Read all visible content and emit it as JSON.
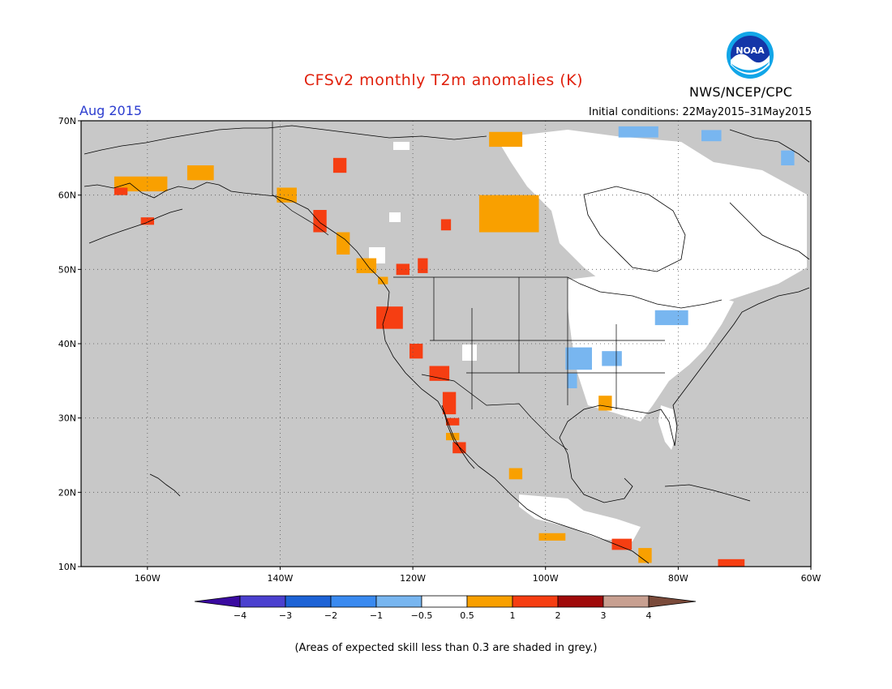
{
  "header": {
    "title": "CFSv2 monthly T2m anomalies (K)",
    "month": "Aug 2015",
    "initial_conditions": "Initial conditions: 22May2015–31May2015",
    "agency": "NWS/NCEP/CPC",
    "logo_text": "NOAA"
  },
  "map": {
    "lon_range": [
      -170,
      -60
    ],
    "lat_range": [
      10,
      70
    ],
    "lat_ticks": [
      {
        "value": 70,
        "label": "70N"
      },
      {
        "value": 60,
        "label": "60N"
      },
      {
        "value": 50,
        "label": "50N"
      },
      {
        "value": 40,
        "label": "40N"
      },
      {
        "value": 30,
        "label": "30N"
      },
      {
        "value": 20,
        "label": "20N"
      },
      {
        "value": 10,
        "label": "10N"
      }
    ],
    "lon_ticks": [
      {
        "value": -160,
        "label": "160W"
      },
      {
        "value": -140,
        "label": "140W"
      },
      {
        "value": -120,
        "label": "120W"
      },
      {
        "value": -100,
        "label": "100W"
      },
      {
        "value": -80,
        "label": "80W"
      },
      {
        "value": -60,
        "label": "60W"
      }
    ],
    "colors": {
      "low_skill_grey": "#c8c8c8",
      "land_line": "#000000",
      "neutral": "#ffffff",
      "orange": "#f9a000",
      "red_orange": "#f63e12",
      "light_blue": "#78b6f0",
      "blue": "#4a98ef"
    }
  },
  "colorbar": {
    "colors": [
      "#3a0aa0",
      "#4b40cf",
      "#1d63d6",
      "#3a8af0",
      "#78b6f0",
      "#ffffff",
      "#f9a000",
      "#f63e12",
      "#a00a0a",
      "#c8a091",
      "#7a4a3a"
    ],
    "labels": [
      "−4",
      "−3",
      "−2",
      "−1",
      "−0.5",
      "0.5",
      "1",
      "2",
      "3",
      "4"
    ]
  },
  "footnote": "(Areas of expected skill less than 0.3 are shaded in grey.)",
  "chart_data": {
    "type": "heatmap",
    "title": "CFSv2 monthly T2m anomalies (K)",
    "units": "K",
    "bins": [
      -4,
      -3,
      -2,
      -1,
      -0.5,
      0.5,
      1,
      2,
      3,
      4
    ],
    "cells": [
      {
        "lon": -161,
        "lat": 61.5,
        "w": 8,
        "h": 2,
        "cat": "orange"
      },
      {
        "lon": -152,
        "lat": 63,
        "w": 4,
        "h": 2,
        "cat": "orange"
      },
      {
        "lon": -160,
        "lat": 56.5,
        "w": 2,
        "h": 1,
        "cat": "red_orange"
      },
      {
        "lon": -164,
        "lat": 60.5,
        "w": 2,
        "h": 1,
        "cat": "red_orange"
      },
      {
        "lon": -139,
        "lat": 60,
        "w": 3,
        "h": 2,
        "cat": "orange"
      },
      {
        "lon": -134,
        "lat": 56.5,
        "w": 2,
        "h": 3,
        "cat": "red_orange"
      },
      {
        "lon": -130.5,
        "lat": 53.5,
        "w": 2,
        "h": 3,
        "cat": "orange"
      },
      {
        "lon": -127,
        "lat": 50.5,
        "w": 3,
        "h": 2,
        "cat": "orange"
      },
      {
        "lon": -124.5,
        "lat": 48.5,
        "w": 1.5,
        "h": 1,
        "cat": "orange"
      },
      {
        "lon": -121.5,
        "lat": 50,
        "w": 2,
        "h": 1.5,
        "cat": "red_orange"
      },
      {
        "lon": -118.5,
        "lat": 50.5,
        "w": 1.5,
        "h": 2,
        "cat": "red_orange"
      },
      {
        "lon": -123.5,
        "lat": 43.5,
        "w": 4,
        "h": 3,
        "cat": "red_orange"
      },
      {
        "lon": -119.5,
        "lat": 39,
        "w": 2,
        "h": 2,
        "cat": "red_orange"
      },
      {
        "lon": -116,
        "lat": 36,
        "w": 3,
        "h": 2,
        "cat": "red_orange"
      },
      {
        "lon": -114.5,
        "lat": 32,
        "w": 2,
        "h": 3,
        "cat": "red_orange"
      },
      {
        "lon": -114,
        "lat": 29.5,
        "w": 2,
        "h": 1,
        "cat": "red_orange"
      },
      {
        "lon": -114,
        "lat": 27.5,
        "w": 2,
        "h": 1,
        "cat": "orange"
      },
      {
        "lon": -113,
        "lat": 26,
        "w": 2,
        "h": 1.5,
        "cat": "red_orange"
      },
      {
        "lon": -105.5,
        "lat": 57.5,
        "w": 9,
        "h": 5,
        "cat": "orange"
      },
      {
        "lon": -115,
        "lat": 56,
        "w": 1.5,
        "h": 1.5,
        "cat": "red_orange"
      },
      {
        "lon": -106,
        "lat": 67.5,
        "w": 5,
        "h": 2,
        "cat": "orange"
      },
      {
        "lon": -131,
        "lat": 64,
        "w": 2,
        "h": 2,
        "cat": "red_orange"
      },
      {
        "lon": -104.5,
        "lat": 22.5,
        "w": 2,
        "h": 1.5,
        "cat": "orange"
      },
      {
        "lon": -99,
        "lat": 14,
        "w": 4,
        "h": 1,
        "cat": "orange"
      },
      {
        "lon": -88.5,
        "lat": 13,
        "w": 3,
        "h": 1.5,
        "cat": "red_orange"
      },
      {
        "lon": -85,
        "lat": 11.5,
        "w": 2,
        "h": 2,
        "cat": "orange"
      },
      {
        "lon": -72,
        "lat": 10.5,
        "w": 4,
        "h": 1,
        "cat": "red_orange"
      },
      {
        "lon": -91,
        "lat": 32,
        "w": 2,
        "h": 2,
        "cat": "orange"
      },
      {
        "lon": -95,
        "lat": 38,
        "w": 4,
        "h": 3,
        "cat": "light_blue"
      },
      {
        "lon": -90,
        "lat": 38,
        "w": 3,
        "h": 2,
        "cat": "light_blue"
      },
      {
        "lon": -81,
        "lat": 43.5,
        "w": 5,
        "h": 2,
        "cat": "light_blue"
      },
      {
        "lon": -96,
        "lat": 35,
        "w": 1.5,
        "h": 2,
        "cat": "light_blue"
      },
      {
        "lon": -86,
        "lat": 68.5,
        "w": 6,
        "h": 1.5,
        "cat": "light_blue"
      },
      {
        "lon": -63.5,
        "lat": 65,
        "w": 2,
        "h": 2,
        "cat": "light_blue"
      },
      {
        "lon": -75,
        "lat": 68,
        "w": 3,
        "h": 1.5,
        "cat": "light_blue"
      }
    ]
  }
}
